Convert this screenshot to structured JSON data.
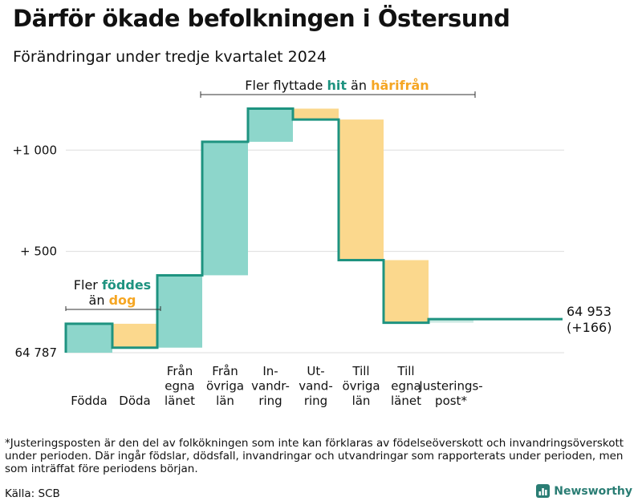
{
  "header": {
    "title": "Därför ökade befolkningen i Östersund",
    "subtitle": "Förändringar under tredje kvartalet 2024"
  },
  "chart_data": {
    "type": "waterfall",
    "base_label": "64 787",
    "end_label": "64 953",
    "end_change_label": "(+166)",
    "y_ticks": [
      {
        "value": 0,
        "label": "64 787"
      },
      {
        "value": 500,
        "label": "+  500"
      },
      {
        "value": 1000,
        "label": "+1 000"
      }
    ],
    "steps": [
      {
        "name": "Födda",
        "label": [
          "Födda"
        ],
        "delta": 143,
        "kind": "in"
      },
      {
        "name": "Döda",
        "label": [
          "Döda"
        ],
        "delta": -118,
        "kind": "out"
      },
      {
        "name": "Från egna länet",
        "label": [
          "Från",
          "egna",
          "länet"
        ],
        "delta": 357,
        "kind": "in"
      },
      {
        "name": "Från övriga län",
        "label": [
          "Från",
          "övriga",
          "län"
        ],
        "delta": 659,
        "kind": "in"
      },
      {
        "name": "Invandring",
        "label": [
          "In-",
          "vandr-",
          "ring"
        ],
        "delta": 164,
        "kind": "in"
      },
      {
        "name": "Utvandring",
        "label": [
          "Ut-",
          "vand-",
          "ring"
        ],
        "delta": -54,
        "kind": "out"
      },
      {
        "name": "Till övriga län",
        "label": [
          "Till",
          "övriga",
          "län"
        ],
        "delta": -694,
        "kind": "out"
      },
      {
        "name": "Till egna länet",
        "label": [
          "Till",
          "egna",
          "länet"
        ],
        "delta": -309,
        "kind": "out"
      },
      {
        "name": "Justeringspost*",
        "label": [
          "Justerings-",
          "post*"
        ],
        "delta": 18,
        "kind": "adj"
      }
    ],
    "annotations": {
      "births": {
        "line1": "Fler ",
        "line1_hl": "föddes",
        "line2": "än ",
        "line2_hl": "dog"
      },
      "migration": {
        "part1": "Fler flyttade ",
        "hl1": "hit",
        "part2": " än ",
        "hl2": "härifrån"
      }
    },
    "colors": {
      "in": "#8dd6cb",
      "out": "#fbd88d",
      "adj": "#cde9e3",
      "line": "#1e9380",
      "in_text": "#1e9380",
      "out_text": "#f5a623",
      "grid": "#dddddd"
    }
  },
  "footnote": "*Justeringsposten är den del av folkökningen som inte kan förklaras av födelseöverskott och invandringsöverskott under perioden. Där ingår födslar, dödsfall, invandringar och utvandringar som rapporterats under perioden, men som inträffat före periodens början.",
  "source": "Källa: SCB",
  "brand": {
    "name": "Newsworthy",
    "icon": "bar-chart-logo-icon",
    "color": "#2a7d74"
  }
}
